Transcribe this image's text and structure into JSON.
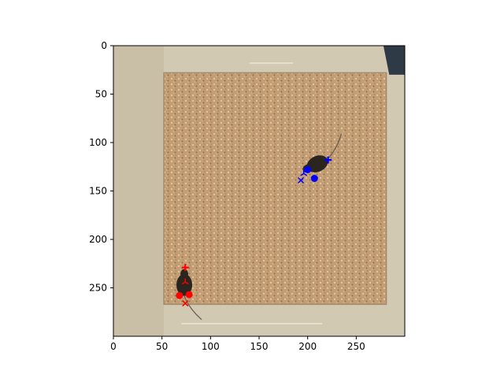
{
  "figure": {
    "background": "#ffffff"
  },
  "chart_data": {
    "type": "scatter",
    "title": "",
    "xlabel": "",
    "ylabel": "",
    "xlim": [
      0,
      300
    ],
    "ylim": [
      300,
      0
    ],
    "y_inverted": true,
    "grid": false,
    "legend": "none",
    "x_ticks": [
      0,
      50,
      100,
      150,
      200,
      250
    ],
    "y_ticks": [
      0,
      50,
      100,
      150,
      200,
      250
    ],
    "background_image": {
      "content": "overhead photo of a square enclosure with tan bedding containing two dark mice",
      "colors": {
        "wall": "#d2c9b2",
        "wall_shadow": "#bfb59c",
        "floor": "#c39e74",
        "floor_speck_light": "#e2c9a4",
        "floor_speck_dark": "#8f6f4c",
        "corner_dark": "#2f3a47",
        "mouse": "#2b2520"
      },
      "mice": [
        {
          "x": 210,
          "y": 122,
          "angle": -25
        },
        {
          "x": 73,
          "y": 247,
          "angle": 90
        }
      ]
    },
    "series": [
      {
        "color": "#ff0000",
        "points": [
          {
            "x": 74,
            "y": 229,
            "marker": "plus"
          },
          {
            "x": 68,
            "y": 258,
            "marker": "circle"
          },
          {
            "x": 78,
            "y": 257,
            "marker": "circle"
          },
          {
            "x": 74,
            "y": 244,
            "marker": "tri_up"
          },
          {
            "x": 74,
            "y": 266,
            "marker": "x"
          }
        ]
      },
      {
        "color": "#0000ff",
        "points": [
          {
            "x": 221,
            "y": 118,
            "marker": "plus"
          },
          {
            "x": 200,
            "y": 128,
            "marker": "circle"
          },
          {
            "x": 207,
            "y": 137,
            "marker": "circle"
          },
          {
            "x": 196,
            "y": 132,
            "marker": "tri_up"
          },
          {
            "x": 193,
            "y": 139,
            "marker": "x"
          }
        ]
      }
    ]
  }
}
